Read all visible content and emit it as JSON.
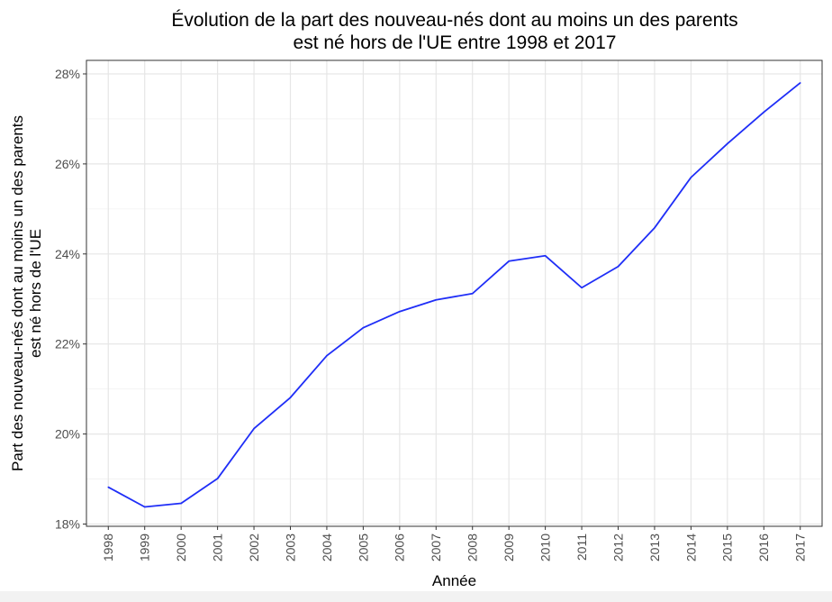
{
  "chart_data": {
    "type": "line",
    "title": "Évolution de la part des nouveau-nés dont au moins un des parents\nest né hors de l'UE entre 1998 et 2017",
    "xlabel": "Année",
    "ylabel": "Part des nouveau-nés dont au moins un des parents\nest né hors de l'UE",
    "x": [
      1998,
      1999,
      2000,
      2001,
      2002,
      2003,
      2004,
      2005,
      2006,
      2007,
      2008,
      2009,
      2010,
      2011,
      2012,
      2013,
      2014,
      2015,
      2016,
      2017
    ],
    "series": [
      {
        "values": [
          18.82,
          18.38,
          18.46,
          19.01,
          20.12,
          20.81,
          21.74,
          22.36,
          22.72,
          22.98,
          23.12,
          23.84,
          23.96,
          23.25,
          23.72,
          24.58,
          25.7,
          26.45,
          27.15,
          27.8
        ],
        "color": "#1f2ef7"
      }
    ],
    "ylim": [
      17.95,
      28.3
    ],
    "xlim": [
      1997.4,
      2017.6
    ],
    "y_ticks": [
      18,
      20,
      22,
      24,
      26,
      28
    ],
    "y_tick_labels": [
      "18%",
      "20%",
      "22%",
      "24%",
      "26%",
      "28%"
    ],
    "grid": true,
    "legend": "none",
    "theme": "bw"
  }
}
